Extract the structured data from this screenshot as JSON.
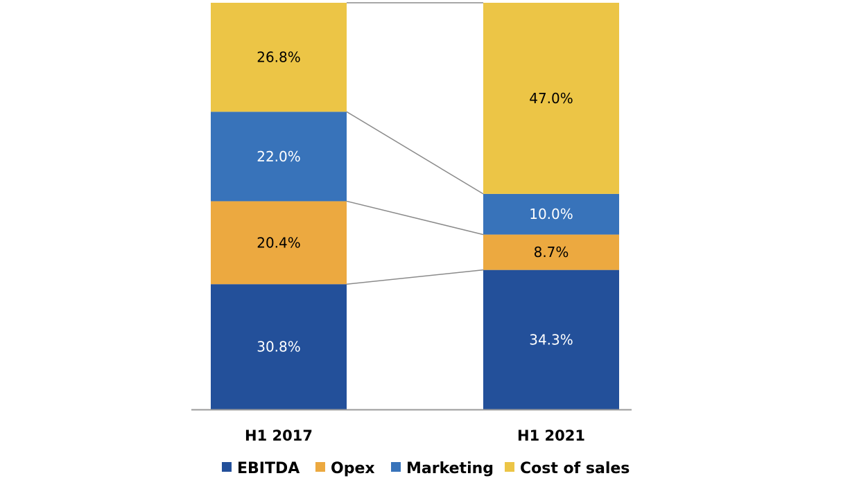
{
  "chart_data": {
    "type": "bar",
    "stacked": true,
    "normalized": true,
    "categories": [
      "H1 2017",
      "H1 2021"
    ],
    "series": [
      {
        "name": "EBITDA",
        "color": "#23509a",
        "values": [
          30.8,
          34.3
        ],
        "labels": [
          "30.8%",
          "34.3%"
        ],
        "label_color": "#ffffff"
      },
      {
        "name": "Opex",
        "color": "#eca940",
        "values": [
          20.4,
          8.7
        ],
        "labels": [
          "20.4%",
          "8.7%"
        ],
        "label_color": "#000000"
      },
      {
        "name": "Marketing",
        "color": "#3873ba",
        "values": [
          22.0,
          10.0
        ],
        "labels": [
          "22.0%",
          "10.0%"
        ],
        "label_color": "#ffffff"
      },
      {
        "name": "Cost of sales",
        "color": "#ecc546",
        "values": [
          26.8,
          47.0
        ],
        "labels": [
          "26.8%",
          "47.0%"
        ],
        "label_color": "#000000"
      }
    ],
    "ylim": [
      0,
      100
    ],
    "grid": false,
    "legend_position": "bottom",
    "connector_lines": true
  }
}
